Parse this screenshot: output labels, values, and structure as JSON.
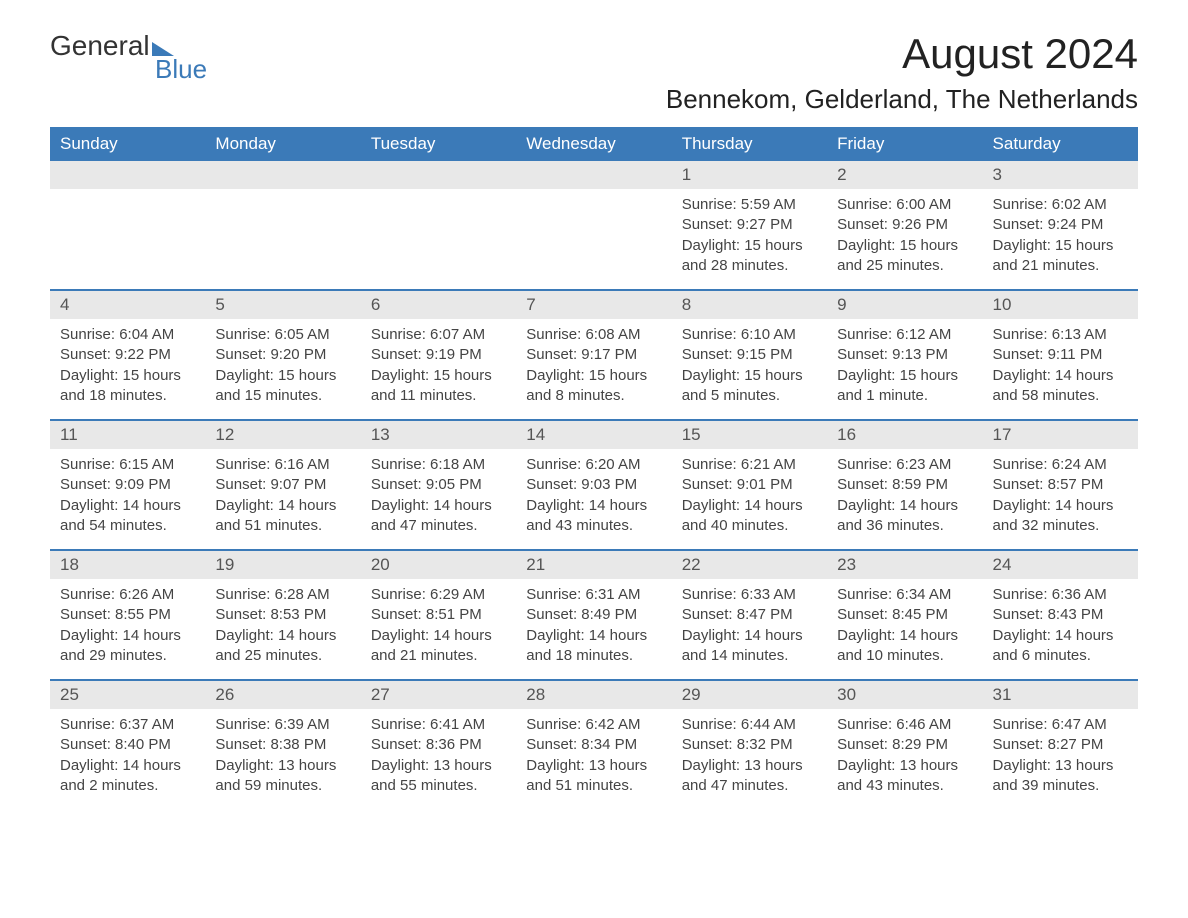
{
  "logo": {
    "text_general": "General",
    "text_blue": "Blue"
  },
  "header": {
    "month_title": "August 2024",
    "location": "Bennekom, Gelderland, The Netherlands"
  },
  "colors": {
    "primary_blue": "#3b7ab8",
    "header_bg": "#e8e8e8",
    "text_dark": "#333333",
    "text_body": "#444444"
  },
  "calendar": {
    "day_headers": [
      "Sunday",
      "Monday",
      "Tuesday",
      "Wednesday",
      "Thursday",
      "Friday",
      "Saturday"
    ],
    "weeks": [
      [
        null,
        null,
        null,
        null,
        {
          "day": "1",
          "sunrise": "Sunrise: 5:59 AM",
          "sunset": "Sunset: 9:27 PM",
          "daylight": "Daylight: 15 hours and 28 minutes."
        },
        {
          "day": "2",
          "sunrise": "Sunrise: 6:00 AM",
          "sunset": "Sunset: 9:26 PM",
          "daylight": "Daylight: 15 hours and 25 minutes."
        },
        {
          "day": "3",
          "sunrise": "Sunrise: 6:02 AM",
          "sunset": "Sunset: 9:24 PM",
          "daylight": "Daylight: 15 hours and 21 minutes."
        }
      ],
      [
        {
          "day": "4",
          "sunrise": "Sunrise: 6:04 AM",
          "sunset": "Sunset: 9:22 PM",
          "daylight": "Daylight: 15 hours and 18 minutes."
        },
        {
          "day": "5",
          "sunrise": "Sunrise: 6:05 AM",
          "sunset": "Sunset: 9:20 PM",
          "daylight": "Daylight: 15 hours and 15 minutes."
        },
        {
          "day": "6",
          "sunrise": "Sunrise: 6:07 AM",
          "sunset": "Sunset: 9:19 PM",
          "daylight": "Daylight: 15 hours and 11 minutes."
        },
        {
          "day": "7",
          "sunrise": "Sunrise: 6:08 AM",
          "sunset": "Sunset: 9:17 PM",
          "daylight": "Daylight: 15 hours and 8 minutes."
        },
        {
          "day": "8",
          "sunrise": "Sunrise: 6:10 AM",
          "sunset": "Sunset: 9:15 PM",
          "daylight": "Daylight: 15 hours and 5 minutes."
        },
        {
          "day": "9",
          "sunrise": "Sunrise: 6:12 AM",
          "sunset": "Sunset: 9:13 PM",
          "daylight": "Daylight: 15 hours and 1 minute."
        },
        {
          "day": "10",
          "sunrise": "Sunrise: 6:13 AM",
          "sunset": "Sunset: 9:11 PM",
          "daylight": "Daylight: 14 hours and 58 minutes."
        }
      ],
      [
        {
          "day": "11",
          "sunrise": "Sunrise: 6:15 AM",
          "sunset": "Sunset: 9:09 PM",
          "daylight": "Daylight: 14 hours and 54 minutes."
        },
        {
          "day": "12",
          "sunrise": "Sunrise: 6:16 AM",
          "sunset": "Sunset: 9:07 PM",
          "daylight": "Daylight: 14 hours and 51 minutes."
        },
        {
          "day": "13",
          "sunrise": "Sunrise: 6:18 AM",
          "sunset": "Sunset: 9:05 PM",
          "daylight": "Daylight: 14 hours and 47 minutes."
        },
        {
          "day": "14",
          "sunrise": "Sunrise: 6:20 AM",
          "sunset": "Sunset: 9:03 PM",
          "daylight": "Daylight: 14 hours and 43 minutes."
        },
        {
          "day": "15",
          "sunrise": "Sunrise: 6:21 AM",
          "sunset": "Sunset: 9:01 PM",
          "daylight": "Daylight: 14 hours and 40 minutes."
        },
        {
          "day": "16",
          "sunrise": "Sunrise: 6:23 AM",
          "sunset": "Sunset: 8:59 PM",
          "daylight": "Daylight: 14 hours and 36 minutes."
        },
        {
          "day": "17",
          "sunrise": "Sunrise: 6:24 AM",
          "sunset": "Sunset: 8:57 PM",
          "daylight": "Daylight: 14 hours and 32 minutes."
        }
      ],
      [
        {
          "day": "18",
          "sunrise": "Sunrise: 6:26 AM",
          "sunset": "Sunset: 8:55 PM",
          "daylight": "Daylight: 14 hours and 29 minutes."
        },
        {
          "day": "19",
          "sunrise": "Sunrise: 6:28 AM",
          "sunset": "Sunset: 8:53 PM",
          "daylight": "Daylight: 14 hours and 25 minutes."
        },
        {
          "day": "20",
          "sunrise": "Sunrise: 6:29 AM",
          "sunset": "Sunset: 8:51 PM",
          "daylight": "Daylight: 14 hours and 21 minutes."
        },
        {
          "day": "21",
          "sunrise": "Sunrise: 6:31 AM",
          "sunset": "Sunset: 8:49 PM",
          "daylight": "Daylight: 14 hours and 18 minutes."
        },
        {
          "day": "22",
          "sunrise": "Sunrise: 6:33 AM",
          "sunset": "Sunset: 8:47 PM",
          "daylight": "Daylight: 14 hours and 14 minutes."
        },
        {
          "day": "23",
          "sunrise": "Sunrise: 6:34 AM",
          "sunset": "Sunset: 8:45 PM",
          "daylight": "Daylight: 14 hours and 10 minutes."
        },
        {
          "day": "24",
          "sunrise": "Sunrise: 6:36 AM",
          "sunset": "Sunset: 8:43 PM",
          "daylight": "Daylight: 14 hours and 6 minutes."
        }
      ],
      [
        {
          "day": "25",
          "sunrise": "Sunrise: 6:37 AM",
          "sunset": "Sunset: 8:40 PM",
          "daylight": "Daylight: 14 hours and 2 minutes."
        },
        {
          "day": "26",
          "sunrise": "Sunrise: 6:39 AM",
          "sunset": "Sunset: 8:38 PM",
          "daylight": "Daylight: 13 hours and 59 minutes."
        },
        {
          "day": "27",
          "sunrise": "Sunrise: 6:41 AM",
          "sunset": "Sunset: 8:36 PM",
          "daylight": "Daylight: 13 hours and 55 minutes."
        },
        {
          "day": "28",
          "sunrise": "Sunrise: 6:42 AM",
          "sunset": "Sunset: 8:34 PM",
          "daylight": "Daylight: 13 hours and 51 minutes."
        },
        {
          "day": "29",
          "sunrise": "Sunrise: 6:44 AM",
          "sunset": "Sunset: 8:32 PM",
          "daylight": "Daylight: 13 hours and 47 minutes."
        },
        {
          "day": "30",
          "sunrise": "Sunrise: 6:46 AM",
          "sunset": "Sunset: 8:29 PM",
          "daylight": "Daylight: 13 hours and 43 minutes."
        },
        {
          "day": "31",
          "sunrise": "Sunrise: 6:47 AM",
          "sunset": "Sunset: 8:27 PM",
          "daylight": "Daylight: 13 hours and 39 minutes."
        }
      ]
    ]
  }
}
